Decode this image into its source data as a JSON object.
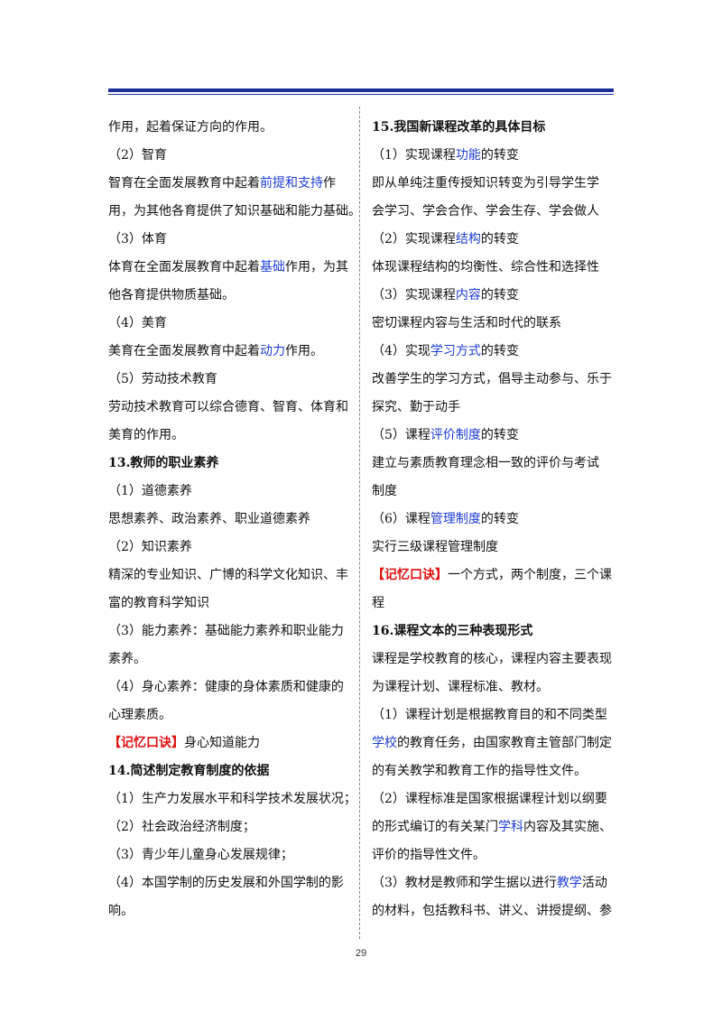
{
  "page_number": "29",
  "left_column": [
    {
      "segs": [
        {
          "t": "作用，起着保证方向的作用。"
        }
      ]
    },
    {
      "segs": [
        {
          "t": "（2）智育"
        }
      ]
    },
    {
      "segs": [
        {
          "t": "智育在全面发展教育中起着"
        },
        {
          "t": "前提和支持",
          "s": "hl"
        },
        {
          "t": "作"
        }
      ]
    },
    {
      "segs": [
        {
          "t": "用，为其他各育提供了知识基础和能力基础。"
        }
      ]
    },
    {
      "segs": [
        {
          "t": "（3）体育"
        }
      ]
    },
    {
      "segs": [
        {
          "t": "体育在全面发展教育中起着"
        },
        {
          "t": "基础",
          "s": "hl"
        },
        {
          "t": "作用，为其"
        }
      ]
    },
    {
      "segs": [
        {
          "t": "他各育提供物质基础。"
        }
      ]
    },
    {
      "segs": [
        {
          "t": "（4）美育"
        }
      ]
    },
    {
      "segs": [
        {
          "t": "美育在全面发展教育中起着"
        },
        {
          "t": "动力",
          "s": "hl"
        },
        {
          "t": "作用。"
        }
      ]
    },
    {
      "segs": [
        {
          "t": "（5）劳动技术教育"
        }
      ]
    },
    {
      "segs": [
        {
          "t": "劳动技术教育可以综合德育、智育、体育和"
        }
      ]
    },
    {
      "segs": [
        {
          "t": "美育的作用。"
        }
      ]
    },
    {
      "h": true,
      "segs": [
        {
          "t": "13.教师的职业素养"
        }
      ]
    },
    {
      "segs": [
        {
          "t": "（1）道德素养"
        }
      ]
    },
    {
      "segs": [
        {
          "t": "思想素养、政治素养、职业道德素养"
        }
      ]
    },
    {
      "segs": [
        {
          "t": "（2）知识素养"
        }
      ]
    },
    {
      "segs": [
        {
          "t": "精深的专业知识、广博的科学文化知识、丰"
        }
      ]
    },
    {
      "segs": [
        {
          "t": "富的教育科学知识"
        }
      ]
    },
    {
      "segs": [
        {
          "t": "（3）能力素养：基础能力素养和职业能力"
        }
      ]
    },
    {
      "segs": [
        {
          "t": "素养。"
        }
      ]
    },
    {
      "segs": [
        {
          "t": "（4）身心素养：健康的身体素质和健康的"
        }
      ]
    },
    {
      "segs": [
        {
          "t": "心理素质。"
        }
      ]
    },
    {
      "segs": [
        {
          "t": "【记忆口诀】",
          "s": "mem"
        },
        {
          "t": "身心知道能力"
        }
      ]
    },
    {
      "h": true,
      "segs": [
        {
          "t": "14.简述制定教育制度的依据"
        }
      ]
    },
    {
      "segs": [
        {
          "t": "（1）生产力发展水平和科学技术发展状况；"
        }
      ]
    },
    {
      "segs": [
        {
          "t": "（2）社会政治经济制度；"
        }
      ]
    },
    {
      "segs": [
        {
          "t": "（3）青少年儿童身心发展规律；"
        }
      ]
    },
    {
      "segs": [
        {
          "t": "（4）本国学制的历史发展和外国学制的影"
        }
      ]
    },
    {
      "segs": [
        {
          "t": "响。"
        }
      ]
    }
  ],
  "right_column": [
    {
      "h": true,
      "segs": [
        {
          "t": "15.我国新课程改革的具体目标"
        }
      ]
    },
    {
      "segs": [
        {
          "t": "（1）实现课程"
        },
        {
          "t": "功能",
          "s": "hl"
        },
        {
          "t": "的转变"
        }
      ]
    },
    {
      "segs": [
        {
          "t": "即从单纯注重传授知识转变为引导学生学"
        }
      ]
    },
    {
      "segs": [
        {
          "t": "会学习、学会合作、学会生存、学会做人"
        }
      ]
    },
    {
      "segs": [
        {
          "t": "（2）实现课程"
        },
        {
          "t": "结构",
          "s": "hl"
        },
        {
          "t": "的转变"
        }
      ]
    },
    {
      "segs": [
        {
          "t": "体现课程结构的均衡性、综合性和选择性"
        }
      ]
    },
    {
      "segs": [
        {
          "t": "（3）实现课程"
        },
        {
          "t": "内容",
          "s": "hl"
        },
        {
          "t": "的转变"
        }
      ]
    },
    {
      "segs": [
        {
          "t": "密切课程内容与生活和时代的联系"
        }
      ]
    },
    {
      "segs": [
        {
          "t": "（4）实现"
        },
        {
          "t": "学习方式",
          "s": "hl"
        },
        {
          "t": "的转变"
        }
      ]
    },
    {
      "segs": [
        {
          "t": "改善学生的学习方式，倡导主动参与、乐于"
        }
      ]
    },
    {
      "segs": [
        {
          "t": "探究、勤于动手"
        }
      ]
    },
    {
      "segs": [
        {
          "t": "（5）课程"
        },
        {
          "t": "评价制度",
          "s": "hl"
        },
        {
          "t": "的转变"
        }
      ]
    },
    {
      "segs": [
        {
          "t": "建立与素质教育理念相一致的评价与考试"
        }
      ]
    },
    {
      "segs": [
        {
          "t": "制度"
        }
      ]
    },
    {
      "segs": [
        {
          "t": "（6）课程"
        },
        {
          "t": "管理制度",
          "s": "hl"
        },
        {
          "t": "的转变"
        }
      ]
    },
    {
      "segs": [
        {
          "t": "实行三级课程管理制度"
        }
      ]
    },
    {
      "segs": [
        {
          "t": "【记忆口诀】",
          "s": "mem"
        },
        {
          "t": "一个方式，两个制度，三个课"
        }
      ]
    },
    {
      "segs": [
        {
          "t": "程"
        }
      ]
    },
    {
      "h": true,
      "segs": [
        {
          "t": "16.课程文本的三种表现形式"
        }
      ]
    },
    {
      "segs": [
        {
          "t": "课程是学校教育的核心，课程内容主要表现"
        }
      ]
    },
    {
      "segs": [
        {
          "t": "为课程计划、课程标准、教材。"
        }
      ]
    },
    {
      "segs": [
        {
          "t": "（1）课程计划是根据教育目的和不同类型"
        }
      ]
    },
    {
      "segs": [
        {
          "t": "学校",
          "s": "hl"
        },
        {
          "t": "的教育任务，由国家教育主管部门制定"
        }
      ]
    },
    {
      "segs": [
        {
          "t": "的有关教学和教育工作的指导性文件。"
        }
      ]
    },
    {
      "segs": [
        {
          "t": "（2）课程标准是国家根据课程计划以纲要"
        }
      ]
    },
    {
      "segs": [
        {
          "t": "的形式编订的有关某门"
        },
        {
          "t": "学科",
          "s": "hl"
        },
        {
          "t": "内容及其实施、"
        }
      ]
    },
    {
      "segs": [
        {
          "t": "评价的指导性文件。"
        }
      ]
    },
    {
      "segs": [
        {
          "t": "（3）教材是教师和学生据以进行"
        },
        {
          "t": "教学",
          "s": "hl"
        },
        {
          "t": "活动"
        }
      ]
    },
    {
      "segs": [
        {
          "t": "的材料，包括教科书、讲义、讲授提纲、参"
        }
      ]
    }
  ]
}
